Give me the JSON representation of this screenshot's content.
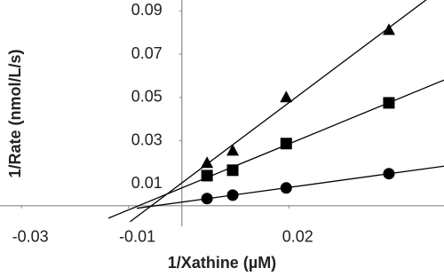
{
  "chart_data": {
    "type": "scatter",
    "x_label": "1/Xathine (µM)",
    "y_label": "1/Rate (nmol/L/s)",
    "xlim": [
      -0.034,
      0.049
    ],
    "ylim": [
      -0.0095,
      0.095
    ],
    "xticks": [
      -0.03,
      -0.01,
      0.02
    ],
    "yticks": [
      0.01,
      0.03,
      0.05,
      0.07,
      0.09
    ],
    "trendline": true,
    "series": [
      {
        "color": "#000000",
        "marker": "circle",
        "x": [
          0.0047,
          0.0095,
          0.0195,
          0.0387
        ],
        "values": [
          0.0033,
          0.0049,
          0.0082,
          0.0148
        ]
      },
      {
        "color": "#000000",
        "marker": "square",
        "x": [
          0.0047,
          0.0095,
          0.0195,
          0.0387
        ],
        "values": [
          0.0139,
          0.0164,
          0.0287,
          0.0475
        ]
      },
      {
        "color": "#000000",
        "marker": "triangle",
        "x": [
          0.0047,
          0.0095,
          0.0195,
          0.0387
        ],
        "values": [
          0.0197,
          0.0254,
          0.05,
          0.0811
        ]
      }
    ]
  }
}
